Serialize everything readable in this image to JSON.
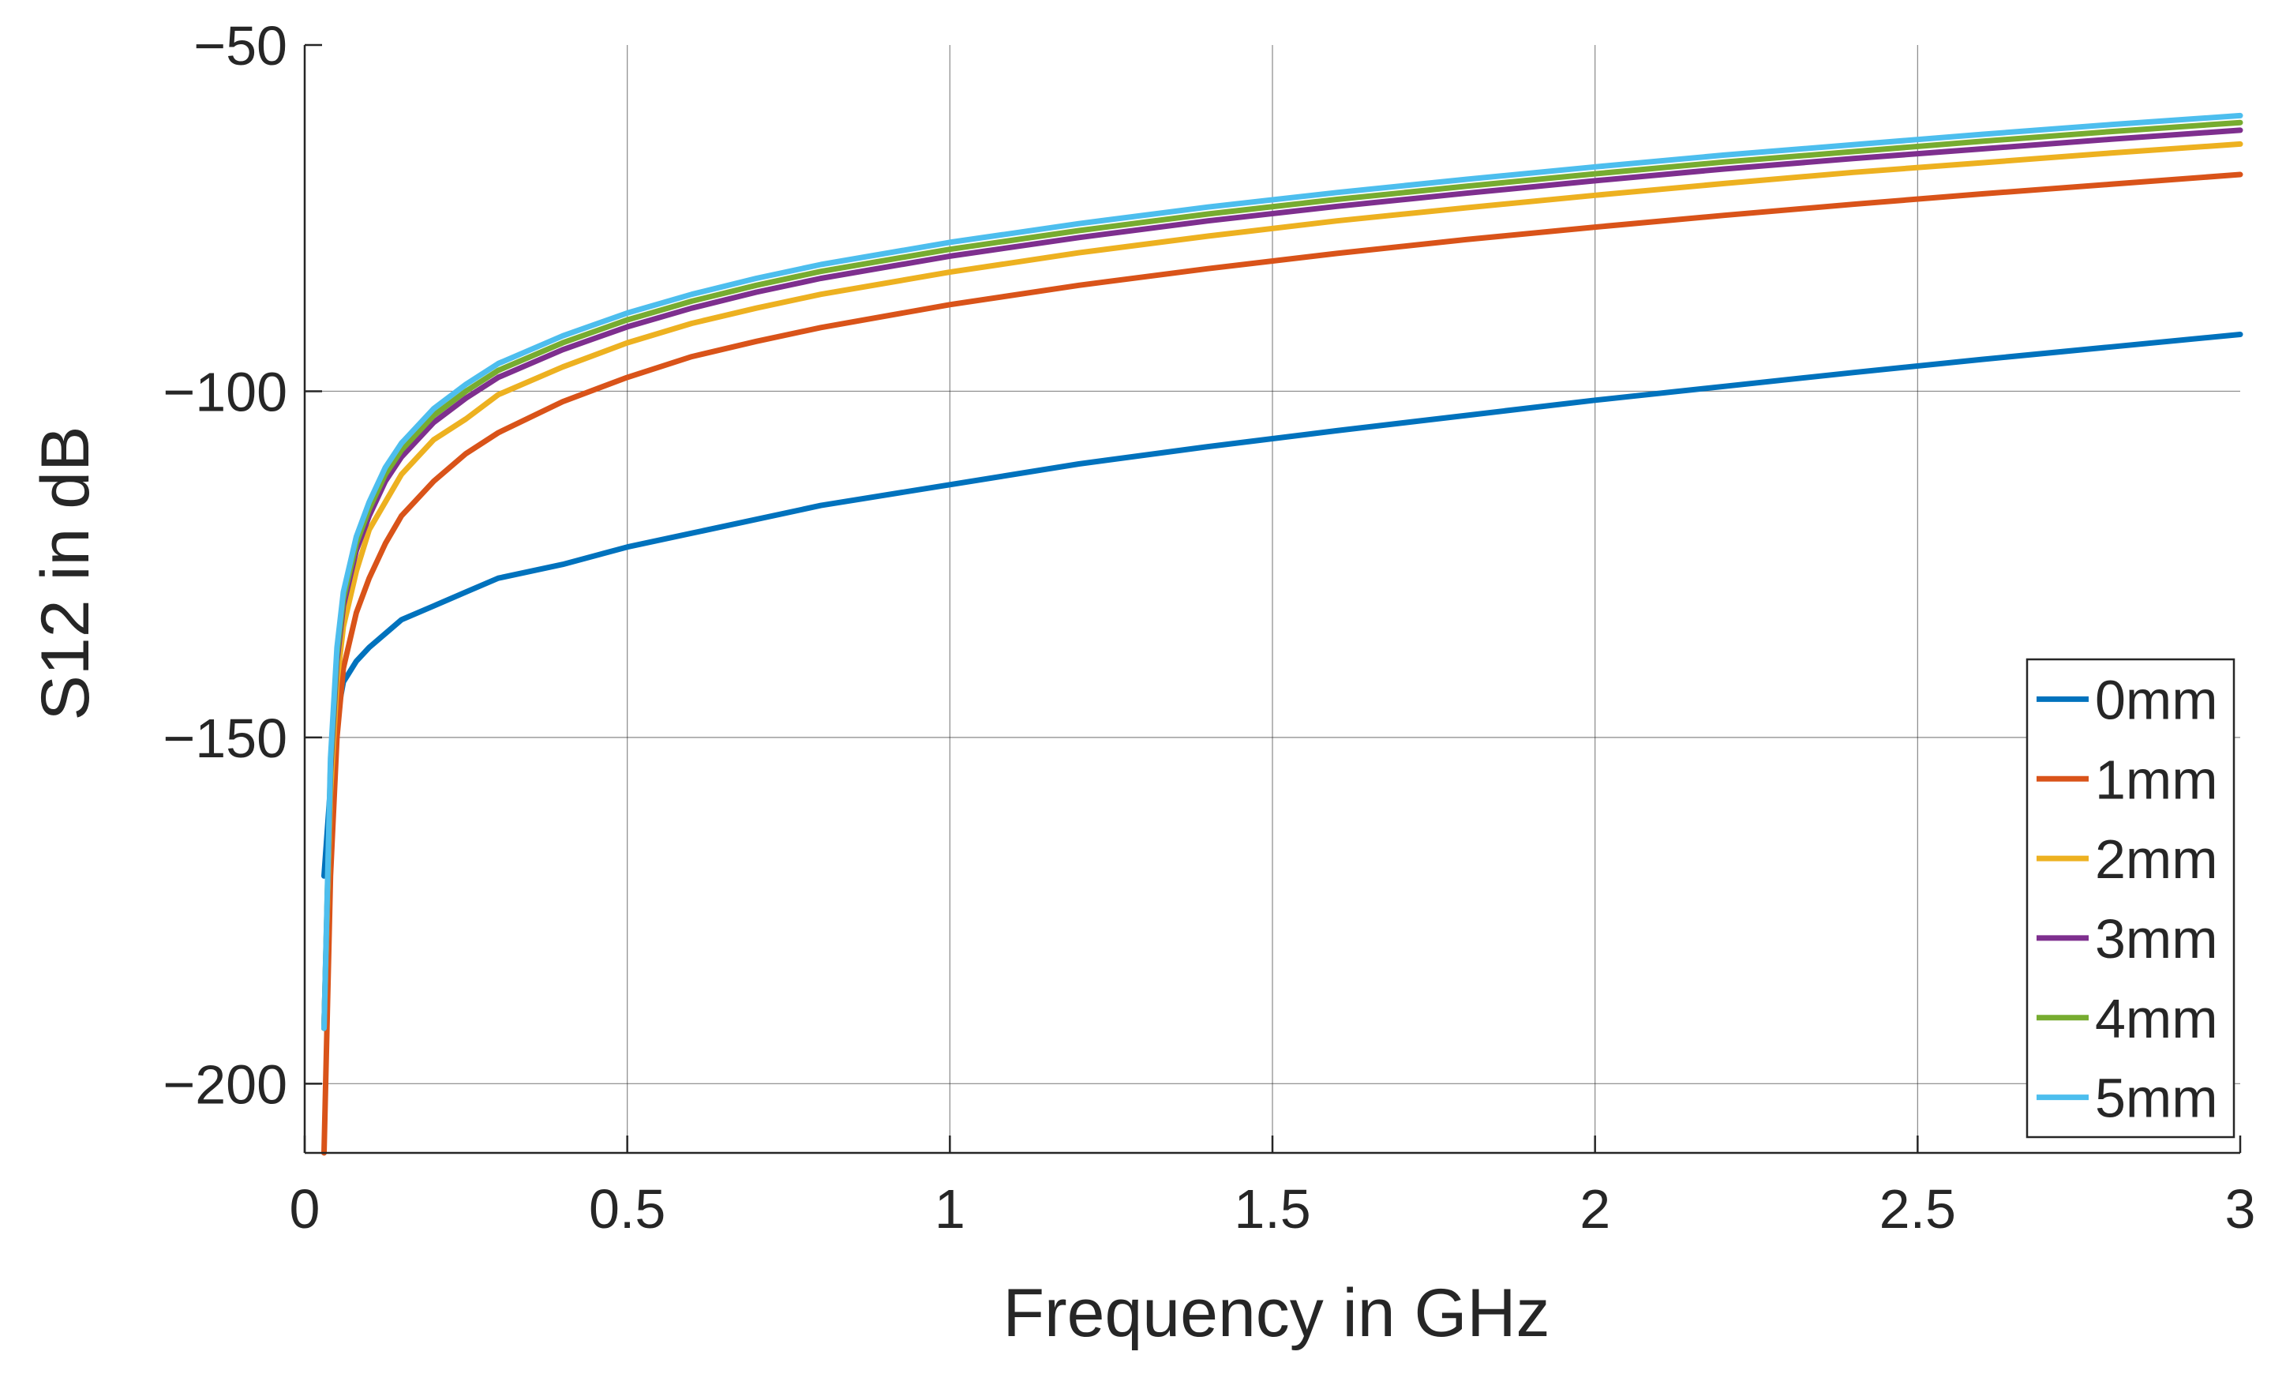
{
  "chart_data": {
    "type": "line",
    "title": "",
    "xlabel": "Frequency in GHz",
    "ylabel": "S12 in dB",
    "xlim": [
      0,
      3
    ],
    "ylim": [
      -210,
      -50
    ],
    "x_ticks": [
      0,
      0.5,
      1,
      1.5,
      2,
      2.5,
      3
    ],
    "x_tick_labels": [
      "0",
      "0.5",
      "1",
      "1.5",
      "2",
      "2.5",
      "3"
    ],
    "y_ticks": [
      -200,
      -150,
      -100,
      -50
    ],
    "y_tick_labels": [
      "−200",
      "−150",
      "−100",
      "−50"
    ],
    "grid": true,
    "legend_position": "bottom-right",
    "x": [
      0.03,
      0.04,
      0.05,
      0.06,
      0.08,
      0.1,
      0.125,
      0.15,
      0.2,
      0.25,
      0.3,
      0.4,
      0.5,
      0.6,
      0.7,
      0.8,
      1.0,
      1.2,
      1.4,
      1.6,
      1.8,
      2.0,
      2.2,
      2.4,
      2.6,
      2.8,
      3.0
    ],
    "series": [
      {
        "name": "0mm",
        "color": "#0072BD",
        "values": [
          -170,
          -157,
          -147,
          -142,
          -139,
          -137,
          -135,
          -133,
          -131,
          -129,
          -127,
          -125,
          -122.5,
          -120.5,
          -118.5,
          -116.5,
          -113.5,
          -110.5,
          -108,
          -105.7,
          -103.5,
          -101.3,
          -99.3,
          -97.3,
          -95.4,
          -93.6,
          -91.8
        ]
      },
      {
        "name": "1mm",
        "color": "#D95319",
        "values": [
          -210,
          -170,
          -150,
          -140,
          -132,
          -127,
          -122,
          -118,
          -113,
          -109,
          -106,
          -101.5,
          -98,
          -95,
          -92.8,
          -90.8,
          -87.5,
          -84.7,
          -82.3,
          -80.1,
          -78.1,
          -76.3,
          -74.6,
          -73,
          -71.5,
          -70.1,
          -68.7
        ]
      },
      {
        "name": "2mm",
        "color": "#EDB120",
        "values": [
          -192,
          -158,
          -142,
          -134,
          -126,
          -120,
          -116,
          -112,
          -107,
          -104,
          -100.5,
          -96.5,
          -93,
          -90.2,
          -88,
          -86,
          -82.8,
          -80,
          -77.6,
          -75.4,
          -73.5,
          -71.7,
          -70,
          -68.4,
          -67,
          -65.6,
          -64.3
        ]
      },
      {
        "name": "3mm",
        "color": "#7E2F8E",
        "values": [
          -192,
          -155,
          -139,
          -131,
          -123,
          -118,
          -113,
          -109.5,
          -104.5,
          -101,
          -98,
          -94,
          -90.7,
          -88,
          -85.7,
          -83.7,
          -80.5,
          -77.8,
          -75.4,
          -73.3,
          -71.4,
          -69.6,
          -67.9,
          -66.4,
          -65,
          -63.6,
          -62.3
        ]
      },
      {
        "name": "4mm",
        "color": "#77AC30",
        "values": [
          -192,
          -154,
          -138,
          -130,
          -122,
          -117,
          -112,
          -108.5,
          -103.5,
          -100,
          -97,
          -93,
          -89.7,
          -87,
          -84.7,
          -82.7,
          -79.5,
          -76.8,
          -74.4,
          -72.3,
          -70.4,
          -68.6,
          -66.9,
          -65.4,
          -63.9,
          -62.5,
          -61.2
        ]
      },
      {
        "name": "5mm",
        "color": "#4DBEEE",
        "values": [
          -192,
          -153,
          -137,
          -129,
          -121,
          -116,
          -111,
          -107.5,
          -102.5,
          -99,
          -96,
          -92,
          -88.7,
          -86,
          -83.7,
          -81.7,
          -78.5,
          -75.8,
          -73.4,
          -71.3,
          -69.4,
          -67.6,
          -65.9,
          -64.4,
          -62.9,
          -61.5,
          -60.2
        ]
      }
    ]
  }
}
